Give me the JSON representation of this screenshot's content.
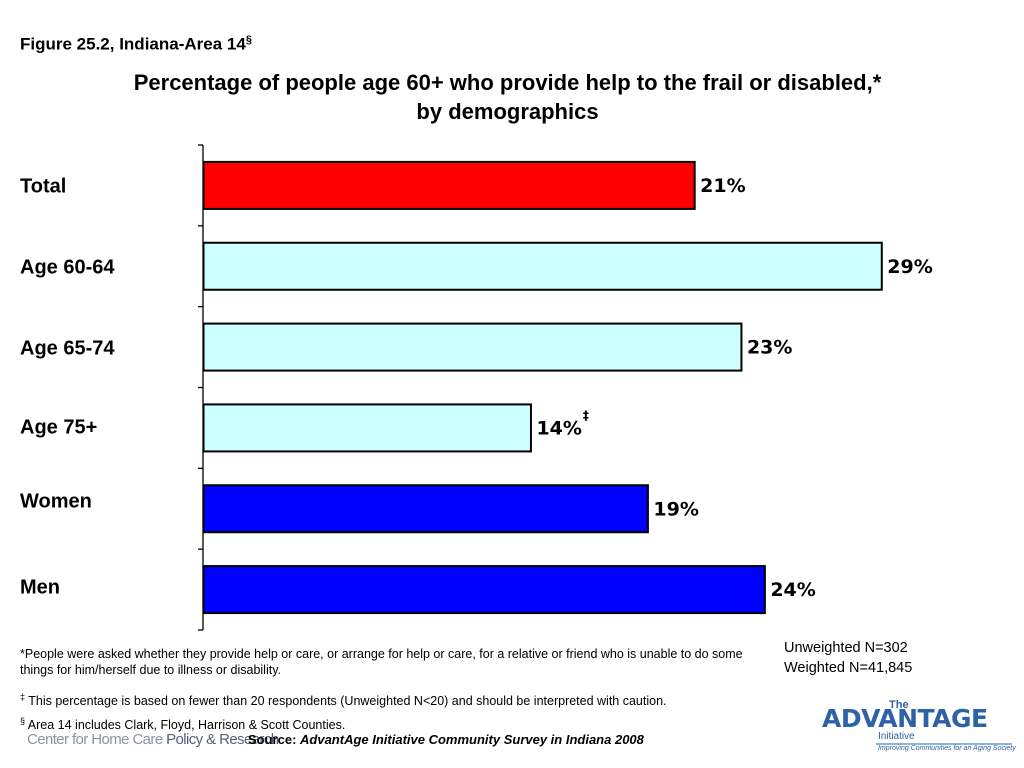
{
  "figure_label": "Figure 25.2, Indiana-Area 14",
  "figure_label_mark": "§",
  "title_line1": "Percentage of people age 60+ who provide help to the frail or disabled,*",
  "title_line2": "by demographics",
  "chart_data": {
    "type": "bar",
    "orientation": "horizontal",
    "categories": [
      "Total",
      "Age 60-64",
      "Age 65-74",
      "Age 75+",
      "Women",
      "Men"
    ],
    "values": [
      21,
      29,
      23,
      14,
      19,
      24
    ],
    "value_labels": [
      "21%",
      "29%",
      "23%",
      "14%",
      "19%",
      "24%"
    ],
    "value_marks": [
      "",
      "",
      "",
      "‡",
      "",
      ""
    ],
    "bar_colors": [
      "#ff0000",
      "#ccffff",
      "#ccffff",
      "#ccffff",
      "#0000ff",
      "#0000ff"
    ],
    "bar_border_color": "#000000",
    "axis_color": "#000000",
    "xlim": [
      0,
      29.8
    ],
    "grid": false,
    "legend": "none"
  },
  "sample": {
    "unweighted": "Unweighted N=302",
    "weighted": "Weighted N=41,845"
  },
  "notes": {
    "note1": "*People were asked whether they provide help or care, or arrange for help or care, for a relative or friend who is unable to do some things for him/herself due to illness or disability.",
    "note2_mark": "‡",
    "note2": " This percentage is based on fewer than 20 respondents (Unweighted N<20) and should be interpreted with caution.",
    "note3_mark": "§",
    "note3": " Area 14 includes Clark, Floyd, Harrison & Scott Counties."
  },
  "source": {
    "prefix": "Source: ",
    "name": "AdvantAge Initiative Community Survey in Indiana 2008"
  },
  "logos": {
    "chc_light": "Center for Home Care ",
    "chc_strong": "Policy & Research",
    "adv_the": "The",
    "adv_word": "ADVANTAGE",
    "adv_initiative": "Initiative",
    "adv_tagline": "Improving Communities for an Aging Society"
  }
}
